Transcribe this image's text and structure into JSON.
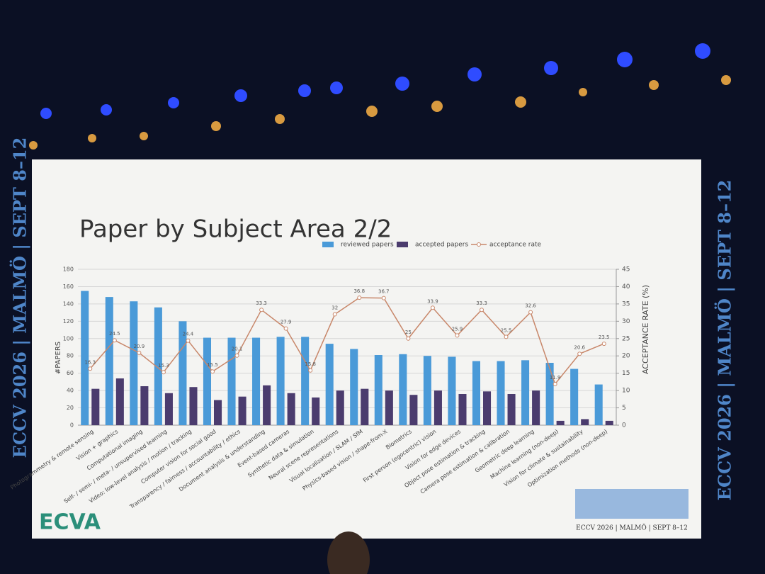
{
  "chart_data": {
    "type": "bar-line",
    "title": "Paper by Subject Area 2/2",
    "categories": [
      "Photogrammetry & remote sensing",
      "Vision + graphics",
      "Computational imaging",
      "Self- / semi- / meta- / unsupervised learning",
      "Video: low-level analysis / motion / tracking",
      "Computer vision for social good",
      "Transparency / fairness / accountability / ethics",
      "Document analysis & understanding",
      "Event-based cameras",
      "Synthetic data & simulation",
      "Neural scene representations",
      "Visual localization / SLAM / SfM",
      "Physics-based vision / shape-from-X",
      "Biometrics",
      "First person (egocentric) vision",
      "Vision for edge devices",
      "Object pose estimation & tracking",
      "Camera pose estimation & calibration",
      "Geometric deep learning",
      "Machine learning (non-deep)",
      "Vision for climate & sustainability",
      "Optimization methods (non-deep)"
    ],
    "series": [
      {
        "name": "reviewed papers",
        "color": "#4a9ad8",
        "values": [
          155,
          148,
          143,
          136,
          120,
          101,
          101,
          101,
          102,
          102,
          94,
          88,
          81,
          82,
          80,
          79,
          74,
          74,
          75,
          72,
          65,
          47
        ]
      },
      {
        "name": "accepted papers",
        "color": "#4b3c6e",
        "values": [
          42,
          54,
          45,
          37,
          44,
          29,
          33,
          46,
          37,
          32,
          40,
          42,
          40,
          35,
          40,
          36,
          39,
          36,
          40,
          5,
          7,
          5
        ]
      },
      {
        "name": "acceptance rate",
        "color": "#c8876a",
        "axis": "y2",
        "values": [
          16.3,
          24.5,
          20.9,
          15.3,
          24.4,
          15.5,
          20.1,
          33.3,
          27.9,
          15.8,
          32,
          36.8,
          36.7,
          25,
          33.9,
          25.9,
          33.3,
          25.5,
          32.6,
          11.9,
          20.6,
          23.5
        ]
      }
    ],
    "y_label": "#PAPERS",
    "y2_label": "ACCEPTANCE RATE (%)",
    "ylim": [
      0,
      180
    ],
    "yticks": [
      0,
      20,
      40,
      60,
      80,
      100,
      120,
      140,
      160,
      180
    ],
    "y2lim": [
      0,
      45
    ],
    "y2ticks": [
      0,
      5,
      10,
      15,
      20,
      25,
      30,
      35,
      40,
      45
    ],
    "grid": true,
    "legend": "top"
  },
  "slide": {
    "logo": "ECVA",
    "footer": "ECCV 2026 | MALMÖ | SEPT 8–12"
  },
  "banner": "ECCV 2026 | MALMÖ | SEPT 8–12"
}
